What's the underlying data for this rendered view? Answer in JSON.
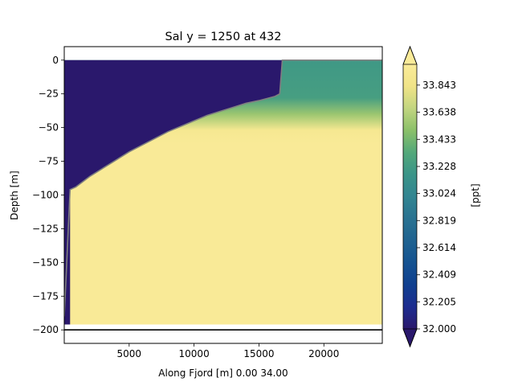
{
  "chart_data": {
    "type": "heatmap",
    "title": "Sal y = 1250 at 432",
    "xlabel": "Along Fjord [m] 0.00 34.00",
    "ylabel": "Depth [m]",
    "xlim": [
      0,
      24500
    ],
    "ylim": [
      -210,
      10
    ],
    "xticks": [
      5000,
      10000,
      15000,
      20000
    ],
    "xtick_labels": [
      "5000",
      "10000",
      "15000",
      "20000"
    ],
    "yticks": [
      0,
      -25,
      -50,
      -75,
      -100,
      -125,
      -150,
      -175,
      -200
    ],
    "ytick_labels": [
      "0",
      "−25",
      "−50",
      "−75",
      "−100",
      "−125",
      "−150",
      "−175",
      "−200"
    ],
    "grid": false,
    "colorbar": {
      "label": "[ppt]",
      "min": 32.0,
      "max": 34.0,
      "extend": "both",
      "colormap": "haline",
      "ticks": [
        32.0,
        32.205,
        32.409,
        32.614,
        32.819,
        33.024,
        33.228,
        33.433,
        33.638,
        33.843
      ],
      "tick_labels": [
        "32.000",
        "32.205",
        "32.409",
        "32.614",
        "32.819",
        "33.024",
        "33.228",
        "33.433",
        "33.638",
        "33.843"
      ],
      "colors": [
        "#2a186c",
        "#1c2c8f",
        "#0f3f8f",
        "#145290",
        "#1f6290",
        "#297291",
        "#328591",
        "#3a9488",
        "#53a87a",
        "#8ac069",
        "#c2d580",
        "#f0e387",
        "#faeb99"
      ]
    },
    "field": {
      "upper_salinity": 33.2,
      "deep_salinity": 33.98,
      "freshwater_salinity": 32.0,
      "transition_depth": [
        -28,
        -52
      ],
      "model_bottom": -196,
      "reference_line_depth": -200
    },
    "boundary": {
      "x": [
        0,
        450,
        900,
        2000,
        3000,
        4000,
        5000,
        6000,
        7000,
        8000,
        9000,
        10000,
        11000,
        12000,
        13000,
        14000,
        15000,
        16200,
        16600,
        16800,
        24500
      ],
      "y": [
        -190,
        -96,
        -94,
        -86,
        -80,
        -74,
        -68,
        -63,
        -58,
        -53,
        -49,
        -45,
        -41,
        -38,
        -35,
        -32,
        -30,
        -27,
        -25,
        0,
        0
      ]
    }
  }
}
